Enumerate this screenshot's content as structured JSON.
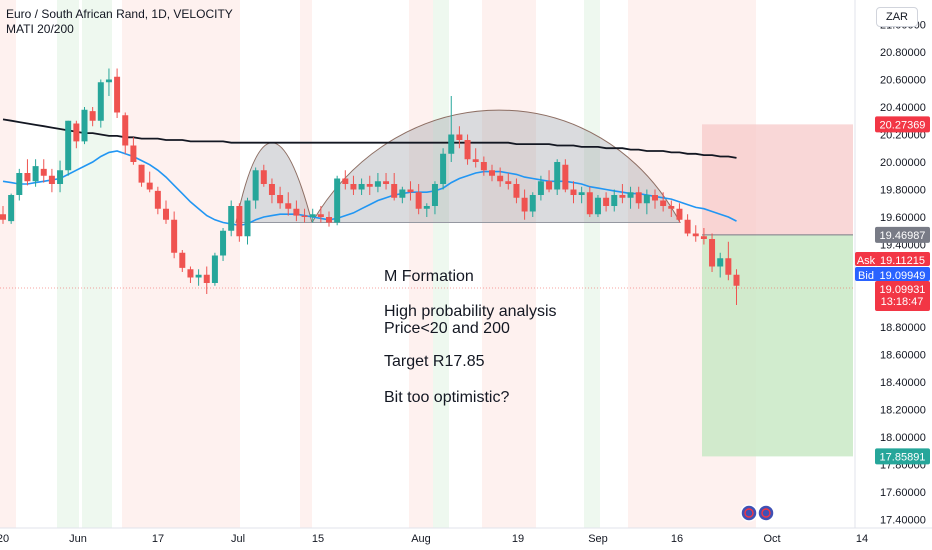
{
  "header": {
    "symbol_line": "Euro / South African Rand, 1D, VELOCITY",
    "indicator_line": "MATI 20/200"
  },
  "currency_button": "ZAR",
  "annotation": {
    "line1": "M Formation",
    "line2": "High probability analysis",
    "line3": "Price<20 and 200",
    "line4": "Target R17.85",
    "line5": "Bit too optimistic?"
  },
  "price_tags": {
    "stop": "20.27369",
    "entry": "19.46987",
    "ask_label": "Ask",
    "ask": "19.11215",
    "bid_label": "Bid",
    "bid": "19.09949",
    "last": "19.09931",
    "countdown": "13:18:47",
    "target": "17.85891"
  },
  "colors": {
    "up": "#26a69a",
    "down": "#ef5350",
    "ma20": "#2196f3",
    "ma200": "#131722",
    "stop_zone": "#f7c9c9",
    "target_zone": "#c9e9c5",
    "ask_tag": "#f23645",
    "bid_tag": "#2962ff",
    "entry_tag": "#787b86"
  },
  "chart_data": {
    "type": "candlestick",
    "title": "Euro / South African Rand, 1D, VELOCITY",
    "y_axis": {
      "ticks": [
        "21.00000",
        "20.80000",
        "20.60000",
        "20.40000",
        "20.20000",
        "20.00000",
        "19.80000",
        "19.60000",
        "19.40000",
        "19.20000",
        "19.00000",
        "18.80000",
        "18.60000",
        "18.40000",
        "18.20000",
        "18.00000",
        "17.80000",
        "17.60000",
        "17.40000"
      ],
      "range": [
        17.36,
        21.08
      ]
    },
    "x_axis": {
      "ticks": [
        "20",
        "Jun",
        "17",
        "Jul",
        "15",
        "Aug",
        "19",
        "Sep",
        "16",
        "Oct",
        "14"
      ]
    },
    "candles": [
      [
        19.62,
        19.68,
        19.55,
        19.58
      ],
      [
        19.57,
        19.77,
        19.55,
        19.76
      ],
      [
        19.76,
        19.95,
        19.72,
        19.92
      ],
      [
        19.92,
        20.02,
        19.83,
        19.86
      ],
      [
        19.86,
        20.02,
        19.82,
        19.97
      ],
      [
        19.95,
        20.02,
        19.85,
        19.9
      ],
      [
        19.9,
        19.95,
        19.78,
        19.84
      ],
      [
        19.84,
        20.01,
        19.78,
        19.94
      ],
      [
        19.94,
        20.3,
        19.9,
        20.3
      ],
      [
        20.28,
        20.3,
        20.1,
        20.15
      ],
      [
        20.15,
        20.4,
        20.13,
        20.38
      ],
      [
        20.37,
        20.4,
        20.26,
        20.3
      ],
      [
        20.3,
        20.6,
        20.25,
        20.58
      ],
      [
        20.58,
        20.68,
        20.48,
        20.6
      ],
      [
        20.62,
        20.68,
        20.32,
        20.36
      ],
      [
        20.34,
        20.36,
        20.06,
        20.12
      ],
      [
        20.12,
        20.18,
        19.98,
        20.0
      ],
      [
        19.98,
        19.98,
        19.82,
        19.85
      ],
      [
        19.85,
        19.93,
        19.78,
        19.8
      ],
      [
        19.79,
        19.82,
        19.62,
        19.66
      ],
      [
        19.66,
        19.72,
        19.55,
        19.58
      ],
      [
        19.58,
        19.64,
        19.3,
        19.34
      ],
      [
        19.34,
        19.36,
        19.2,
        19.23
      ],
      [
        19.22,
        19.24,
        19.12,
        19.16
      ],
      [
        19.16,
        19.22,
        19.1,
        19.18
      ],
      [
        19.18,
        19.24,
        19.04,
        19.12
      ],
      [
        19.12,
        19.34,
        19.1,
        19.32
      ],
      [
        19.32,
        19.52,
        19.28,
        19.5
      ],
      [
        19.5,
        19.72,
        19.46,
        19.68
      ],
      [
        19.68,
        19.7,
        19.42,
        19.46
      ],
      [
        19.46,
        19.74,
        19.4,
        19.72
      ],
      [
        19.72,
        19.96,
        19.66,
        19.94
      ],
      [
        19.94,
        19.98,
        19.82,
        19.84
      ],
      [
        19.84,
        19.88,
        19.7,
        19.76
      ],
      [
        19.76,
        19.82,
        19.66,
        19.7
      ],
      [
        19.7,
        19.78,
        19.61,
        19.66
      ],
      [
        19.66,
        19.72,
        19.57,
        19.61
      ],
      [
        19.61,
        19.66,
        19.56,
        19.6
      ],
      [
        19.6,
        19.66,
        19.56,
        19.62
      ],
      [
        19.62,
        19.68,
        19.56,
        19.6
      ],
      [
        19.6,
        19.64,
        19.53,
        19.56
      ],
      [
        19.56,
        19.9,
        19.54,
        19.88
      ],
      [
        19.88,
        19.94,
        19.8,
        19.84
      ],
      [
        19.84,
        19.9,
        19.76,
        19.8
      ],
      [
        19.8,
        19.88,
        19.76,
        19.84
      ],
      [
        19.84,
        19.9,
        19.76,
        19.82
      ],
      [
        19.82,
        19.92,
        19.78,
        19.86
      ],
      [
        19.86,
        19.92,
        19.8,
        19.84
      ],
      [
        19.84,
        19.92,
        19.72,
        19.74
      ],
      [
        19.74,
        19.82,
        19.7,
        19.8
      ],
      [
        19.8,
        19.86,
        19.72,
        19.78
      ],
      [
        19.78,
        19.84,
        19.62,
        19.66
      ],
      [
        19.66,
        19.7,
        19.6,
        19.68
      ],
      [
        19.68,
        19.86,
        19.62,
        19.84
      ],
      [
        19.84,
        20.1,
        19.8,
        20.06
      ],
      [
        20.06,
        20.48,
        20.0,
        20.2
      ],
      [
        20.2,
        20.26,
        20.1,
        20.16
      ],
      [
        20.16,
        20.2,
        19.98,
        20.02
      ],
      [
        20.02,
        20.1,
        19.96,
        20.0
      ],
      [
        20.0,
        20.04,
        19.9,
        19.94
      ],
      [
        19.94,
        19.98,
        19.86,
        19.9
      ],
      [
        19.9,
        19.96,
        19.82,
        19.86
      ],
      [
        19.86,
        19.92,
        19.8,
        19.84
      ],
      [
        19.84,
        19.88,
        19.7,
        19.74
      ],
      [
        19.74,
        19.8,
        19.58,
        19.64
      ],
      [
        19.64,
        19.78,
        19.6,
        19.76
      ],
      [
        19.76,
        19.9,
        19.72,
        19.86
      ],
      [
        19.86,
        19.94,
        19.78,
        19.8
      ],
      [
        19.8,
        20.02,
        19.76,
        20.0
      ],
      [
        19.98,
        20.02,
        19.78,
        19.8
      ],
      [
        19.8,
        19.86,
        19.7,
        19.76
      ],
      [
        19.76,
        19.82,
        19.7,
        19.78
      ],
      [
        19.78,
        19.82,
        19.6,
        19.62
      ],
      [
        19.62,
        19.76,
        19.6,
        19.74
      ],
      [
        19.74,
        19.78,
        19.64,
        19.68
      ],
      [
        19.68,
        19.8,
        19.64,
        19.76
      ],
      [
        19.76,
        19.84,
        19.7,
        19.74
      ],
      [
        19.74,
        19.82,
        19.66,
        19.78
      ],
      [
        19.78,
        19.82,
        19.66,
        19.7
      ],
      [
        19.7,
        19.8,
        19.62,
        19.76
      ],
      [
        19.76,
        19.8,
        19.66,
        19.72
      ],
      [
        19.72,
        19.78,
        19.64,
        19.68
      ],
      [
        19.68,
        19.72,
        19.6,
        19.66
      ],
      [
        19.66,
        19.7,
        19.56,
        19.58
      ],
      [
        19.58,
        19.62,
        19.46,
        19.48
      ],
      [
        19.48,
        19.54,
        19.42,
        19.46
      ],
      [
        19.46,
        19.52,
        19.4,
        19.44
      ],
      [
        19.44,
        19.48,
        19.2,
        19.24
      ],
      [
        19.24,
        19.34,
        19.16,
        19.3
      ],
      [
        19.3,
        19.42,
        19.14,
        19.18
      ],
      [
        19.18,
        19.22,
        18.96,
        19.1
      ]
    ],
    "series": [
      {
        "name": "MATI 20",
        "values": [
          19.86,
          19.85,
          19.84,
          19.84,
          19.85,
          19.86,
          19.87,
          19.88,
          19.91,
          19.94,
          19.97,
          20.0,
          20.04,
          20.07,
          20.08,
          20.06,
          20.04,
          20.01,
          19.98,
          19.94,
          19.89,
          19.83,
          19.77,
          19.71,
          19.66,
          19.61,
          19.58,
          19.56,
          19.55,
          19.54,
          19.55,
          19.58,
          19.6,
          19.61,
          19.62,
          19.62,
          19.62,
          19.61,
          19.6,
          19.59,
          19.58,
          19.59,
          19.61,
          19.63,
          19.66,
          19.69,
          19.72,
          19.74,
          19.76,
          19.77,
          19.78,
          19.78,
          19.78,
          19.79,
          19.81,
          19.85,
          19.88,
          19.9,
          19.92,
          19.93,
          19.93,
          19.93,
          19.92,
          19.91,
          19.89,
          19.88,
          19.87,
          19.86,
          19.86,
          19.86,
          19.85,
          19.84,
          19.82,
          19.81,
          19.8,
          19.79,
          19.78,
          19.77,
          19.77,
          19.76,
          19.75,
          19.74,
          19.73,
          19.71,
          19.69,
          19.67,
          19.66,
          19.64,
          19.62,
          19.6,
          19.57
        ]
      },
      {
        "name": "MATI 200",
        "values": [
          20.31,
          20.3,
          20.29,
          20.28,
          20.27,
          20.26,
          20.25,
          20.24,
          20.23,
          20.22,
          20.21,
          20.21,
          20.2,
          20.19,
          20.19,
          20.18,
          20.18,
          20.17,
          20.17,
          20.17,
          20.16,
          20.16,
          20.16,
          20.15,
          20.15,
          20.15,
          20.15,
          20.15,
          20.14,
          20.14,
          20.14,
          20.14,
          20.14,
          20.14,
          20.14,
          20.14,
          20.14,
          20.14,
          20.14,
          20.14,
          20.14,
          20.14,
          20.14,
          20.14,
          20.14,
          20.14,
          20.14,
          20.14,
          20.14,
          20.14,
          20.14,
          20.14,
          20.14,
          20.14,
          20.14,
          20.14,
          20.14,
          20.14,
          20.14,
          20.14,
          20.14,
          20.14,
          20.14,
          20.13,
          20.13,
          20.13,
          20.13,
          20.13,
          20.12,
          20.12,
          20.12,
          20.11,
          20.11,
          20.11,
          20.1,
          20.1,
          20.1,
          20.09,
          20.09,
          20.08,
          20.08,
          20.08,
          20.07,
          20.07,
          20.06,
          20.06,
          20.05,
          20.05,
          20.04,
          20.04,
          20.03
        ]
      }
    ],
    "position": {
      "stop": 20.27369,
      "entry": 19.46987,
      "target": 17.85891
    },
    "grid": false,
    "legend": "top-left"
  }
}
